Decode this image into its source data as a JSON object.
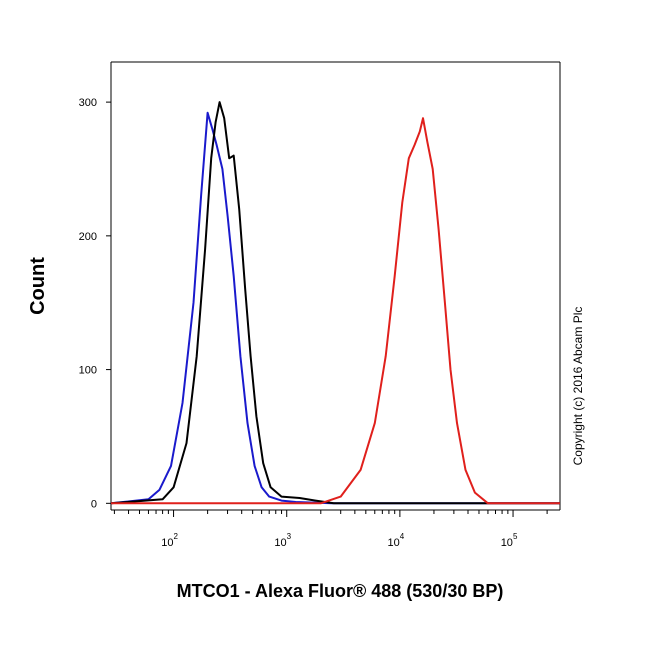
{
  "chart_data": {
    "type": "line",
    "xlabel": "MTCO1 - Alexa Fluor® 488 (530/30 BP)",
    "ylabel": "Count",
    "xscale": "log",
    "xlim": [
      28,
      260000
    ],
    "ylim": [
      -5,
      330
    ],
    "grid": false,
    "x_ticks": [
      {
        "value": 100,
        "base": "10",
        "exp": "2"
      },
      {
        "value": 1000,
        "base": "10",
        "exp": "3"
      },
      {
        "value": 10000,
        "base": "10",
        "exp": "4"
      },
      {
        "value": 100000,
        "base": "10",
        "exp": "5"
      }
    ],
    "y_ticks": [
      {
        "value": 0,
        "label": "0"
      },
      {
        "value": 100,
        "label": "100"
      },
      {
        "value": 200,
        "label": "200"
      },
      {
        "value": 300,
        "label": "300"
      }
    ],
    "annotation": "Copyright (c) 2016 Abcam Plc",
    "series": [
      {
        "color": "#1a1acc",
        "x": [
          28,
          60,
          75,
          95,
          120,
          150,
          175,
          200,
          220,
          240,
          270,
          300,
          340,
          390,
          450,
          520,
          600,
          700,
          900,
          1200,
          2500,
          260000
        ],
        "y": [
          0,
          3,
          10,
          28,
          75,
          150,
          230,
          292,
          280,
          268,
          250,
          215,
          170,
          110,
          60,
          28,
          12,
          5,
          2,
          1,
          0,
          0
        ]
      },
      {
        "color": "#000000",
        "x": [
          28,
          80,
          100,
          130,
          160,
          190,
          215,
          235,
          255,
          280,
          310,
          340,
          380,
          430,
          480,
          540,
          620,
          720,
          900,
          1300,
          1800,
          2600,
          260000
        ],
        "y": [
          0,
          3,
          12,
          45,
          110,
          190,
          258,
          285,
          300,
          288,
          258,
          260,
          220,
          160,
          110,
          65,
          30,
          12,
          5,
          4,
          2,
          0,
          0
        ]
      },
      {
        "color": "#e0201c",
        "x": [
          28,
          2000,
          3000,
          4500,
          6000,
          7500,
          9000,
          10500,
          12000,
          13500,
          15000,
          16000,
          17500,
          19500,
          22000,
          25000,
          28000,
          32000,
          38000,
          46000,
          60000,
          260000
        ],
        "y": [
          0,
          0,
          5,
          25,
          60,
          110,
          170,
          225,
          258,
          268,
          278,
          288,
          270,
          250,
          205,
          150,
          100,
          60,
          25,
          8,
          0,
          0
        ]
      }
    ]
  }
}
